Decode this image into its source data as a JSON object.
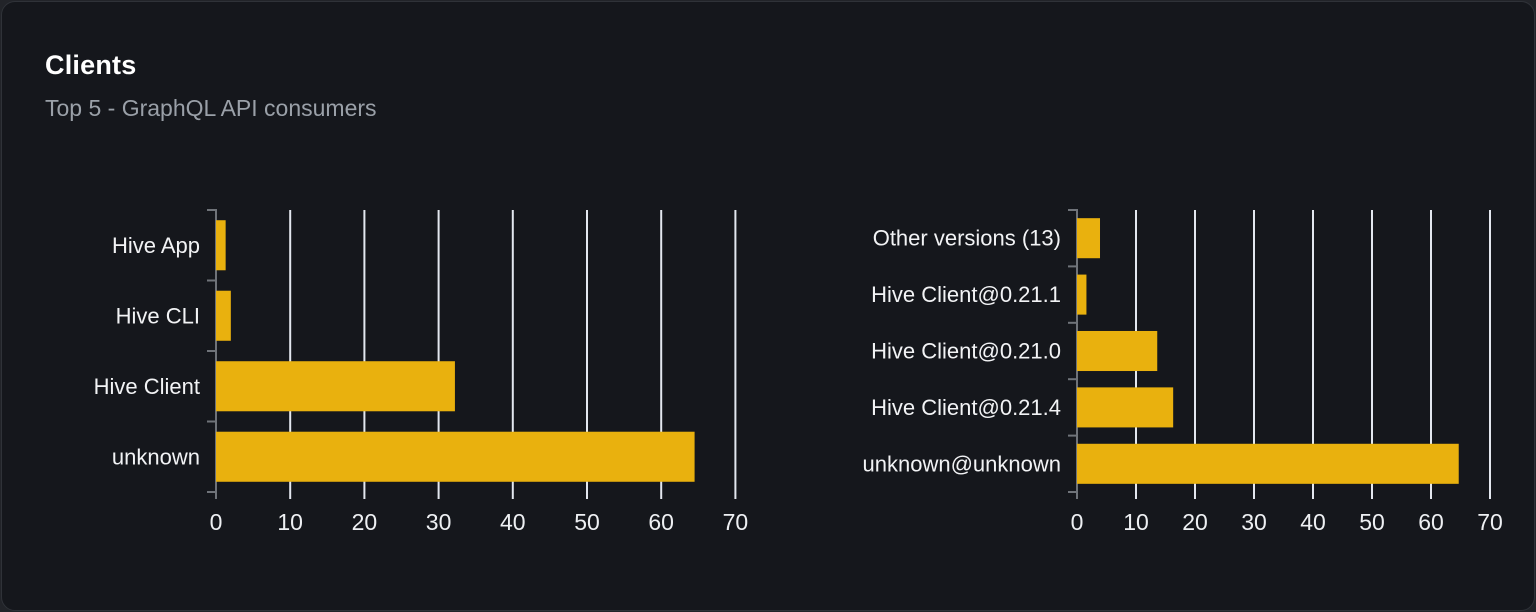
{
  "card": {
    "title": "Clients",
    "subtitle": "Top 5 - GraphQL API consumers"
  },
  "colors": {
    "page_bg": "#222429",
    "card_bg": "#15171c",
    "card_border": "#2f3238",
    "title": "#ffffff",
    "subtitle": "#9aa0a8",
    "bar": "#e9b10e",
    "grid": "#e3e7ef",
    "axis": "#6f7379",
    "category_label": "#f2f3f5",
    "tick_label": "#eef0f3"
  },
  "chart_data": [
    {
      "type": "bar",
      "orientation": "horizontal",
      "name": "clients-by-name",
      "categories": [
        "Hive App",
        "Hive CLI",
        "Hive Client",
        "unknown"
      ],
      "values": [
        1.3,
        2.0,
        32.2,
        64.5
      ],
      "xlim": [
        0,
        75
      ],
      "xticks": [
        0,
        10,
        20,
        30,
        40,
        50,
        60,
        70
      ],
      "grid": true,
      "legend": false,
      "xlabel": "",
      "ylabel": ""
    },
    {
      "type": "bar",
      "orientation": "horizontal",
      "name": "clients-by-version",
      "categories": [
        "Other versions (13)",
        "Hive Client@0.21.1",
        "Hive Client@0.21.0",
        "Hive Client@0.21.4",
        "unknown@unknown"
      ],
      "values": [
        3.9,
        1.6,
        13.6,
        16.3,
        64.7
      ],
      "xlim": [
        0,
        75
      ],
      "xticks": [
        0,
        10,
        20,
        30,
        40,
        50,
        60,
        70
      ],
      "grid": true,
      "legend": false,
      "xlabel": "",
      "ylabel": ""
    }
  ]
}
